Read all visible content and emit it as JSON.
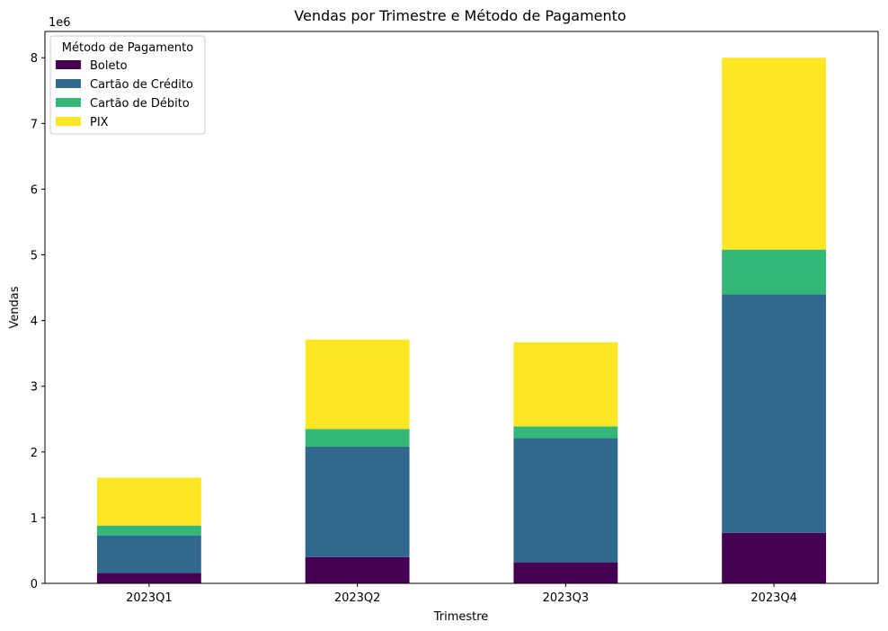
{
  "chart_data": {
    "type": "bar",
    "stacked": true,
    "title": "Vendas por Trimestre e Método de Pagamento",
    "xlabel": "Trimestre",
    "ylabel": "Vendas",
    "y_offset_label": "1e6",
    "y_scale_factor": 1000000,
    "ylim": [
      0,
      8400000
    ],
    "yticks": [
      0,
      1,
      2,
      3,
      4,
      5,
      6,
      7,
      8
    ],
    "grid": false,
    "legend_title": "Método de Pagamento",
    "legend_position": "top-left",
    "categories": [
      "2023Q1",
      "2023Q2",
      "2023Q3",
      "2023Q4"
    ],
    "series": [
      {
        "name": "Boleto",
        "color": "#440154",
        "values": [
          160000,
          400000,
          320000,
          770000
        ]
      },
      {
        "name": "Cartão de Crédito",
        "color": "#31688e",
        "values": [
          570000,
          1680000,
          1890000,
          3630000
        ]
      },
      {
        "name": "Cartão de Débito",
        "color": "#35b779",
        "values": [
          150000,
          270000,
          180000,
          680000
        ]
      },
      {
        "name": "PIX",
        "color": "#fde725",
        "values": [
          730000,
          1360000,
          1280000,
          2920000
        ]
      }
    ]
  }
}
